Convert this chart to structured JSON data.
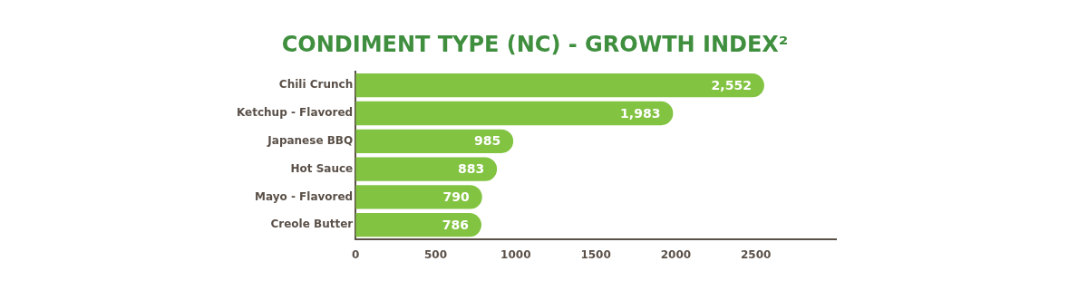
{
  "chart_data": {
    "type": "bar",
    "orientation": "horizontal",
    "title": "CONDIMENT TYPE (NC) - GROWTH INDEX²",
    "categories": [
      "Chili Crunch",
      "Ketchup - Flavored",
      "Japanese BBQ",
      "Hot Sauce",
      "Mayo - Flavored",
      "Creole Butter"
    ],
    "values": [
      2552,
      1983,
      985,
      883,
      790,
      786
    ],
    "value_labels": [
      "2,552",
      "1,983",
      "985",
      "883",
      "790",
      "786"
    ],
    "color": "#82c341",
    "xlim": [
      0,
      3000
    ],
    "xticks": [
      0,
      500,
      1000,
      1500,
      2000,
      2500
    ],
    "grid": false,
    "legend": false
  }
}
